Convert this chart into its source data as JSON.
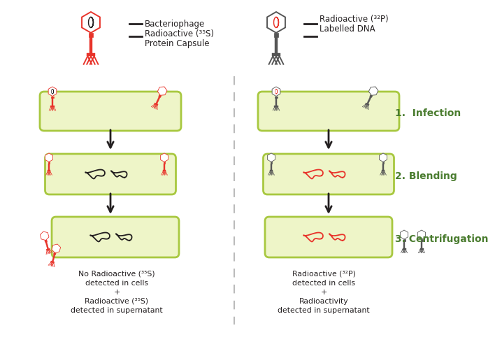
{
  "bg_color": "#ffffff",
  "red_color": "#e8332a",
  "dark_color": "#231f20",
  "label_green": "#4a7c2f",
  "cell_fill": "#eef5c8",
  "cell_edge": "#a8c840",
  "dna_left_color": "#231f20",
  "dna_right_color": "#e8332a",
  "dash_color": "#aaaaaa",
  "legend_line1_color": "#231f20",
  "legend_line2_color": "#231f20",
  "legend_line3_color": "#231f20",
  "step1_label": "1.  Infection",
  "step2_label": "2. Blending",
  "step3_label": "3. Centrifugation",
  "left_line1": "No Radioactive (³⁵S)",
  "left_line2": "detected in cells",
  "left_line3": "+",
  "left_line4": "Radioactive (³⁵S)",
  "left_line5": "detected in supernatant",
  "right_line1": "Radioactive (³²P)",
  "right_line2": "detected in cells",
  "right_line3": "+",
  "right_line4": "Radioactivity",
  "right_line5": "detected in supernatant",
  "leg_bact": "Bacteriophage",
  "leg_s35": "Radioactive (³⁵S)",
  "leg_s35b": "Protein Capsule",
  "leg_p32": "Radioactive (³²P)",
  "leg_p32b": "Labelled DNA"
}
